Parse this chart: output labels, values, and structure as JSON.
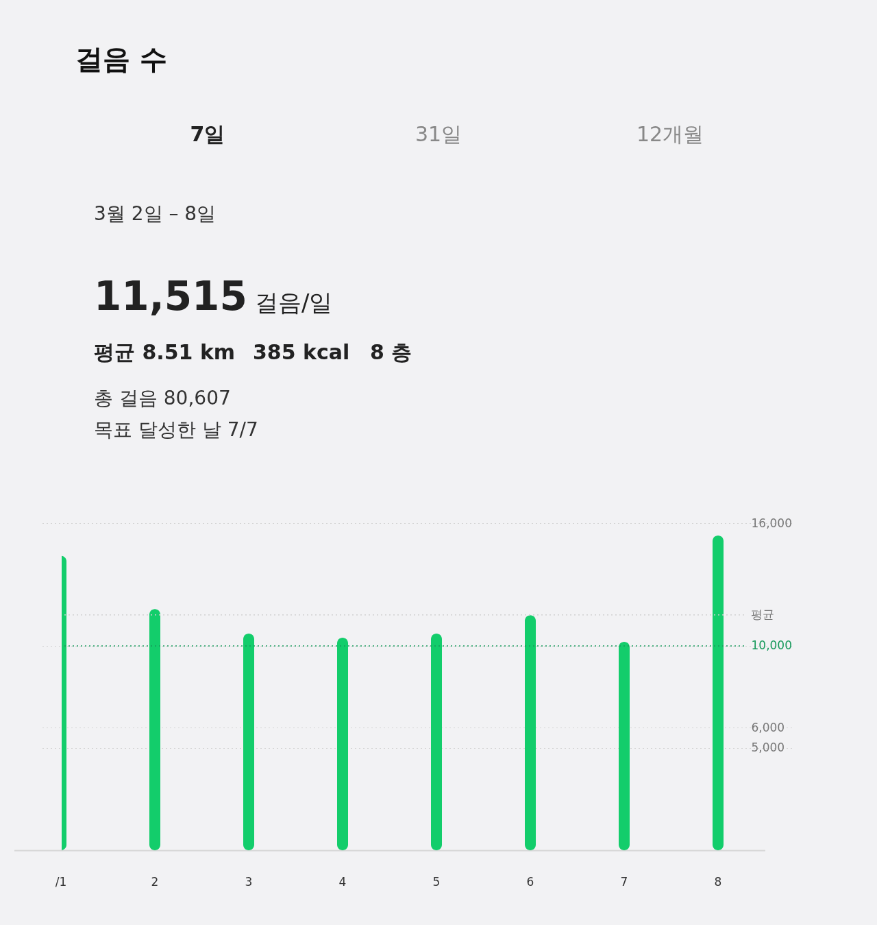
{
  "chart_data": {
    "type": "bar",
    "title": "걸음 수",
    "subtitle": "3월 2일 – 8일",
    "annotations": [
      "7일",
      "31일",
      "12개월",
      "11,515",
      "걸음/일",
      "평균 8.51 km",
      "385 kcal",
      "8 층",
      "총 걸음 80,607",
      "목표 달성한 날 7/7"
    ],
    "categories": [
      "/1",
      "2",
      "3",
      "4",
      "5",
      "6",
      "7",
      "8"
    ],
    "series": [
      {
        "color": "#13cd6b",
        "values": [
          14400,
          11800,
          10600,
          10400,
          10600,
          11500,
          10200,
          15400
        ]
      }
    ],
    "ylim": [
      0,
      16000
    ],
    "yticks": [
      {
        "value": 5000,
        "label": "5,000"
      },
      {
        "value": 6000,
        "label": "6,000"
      },
      {
        "value": 10000,
        "label": "10,000"
      },
      {
        "value": 16000,
        "label": "16,000"
      }
    ],
    "ref_lines": [
      {
        "axis": "y",
        "value": 11515,
        "label": "평균",
        "line_style": "dotted"
      },
      {
        "axis": "y",
        "value": 10000,
        "color": "#17995b",
        "line_style": "dotted"
      }
    ],
    "grid": "y"
  }
}
